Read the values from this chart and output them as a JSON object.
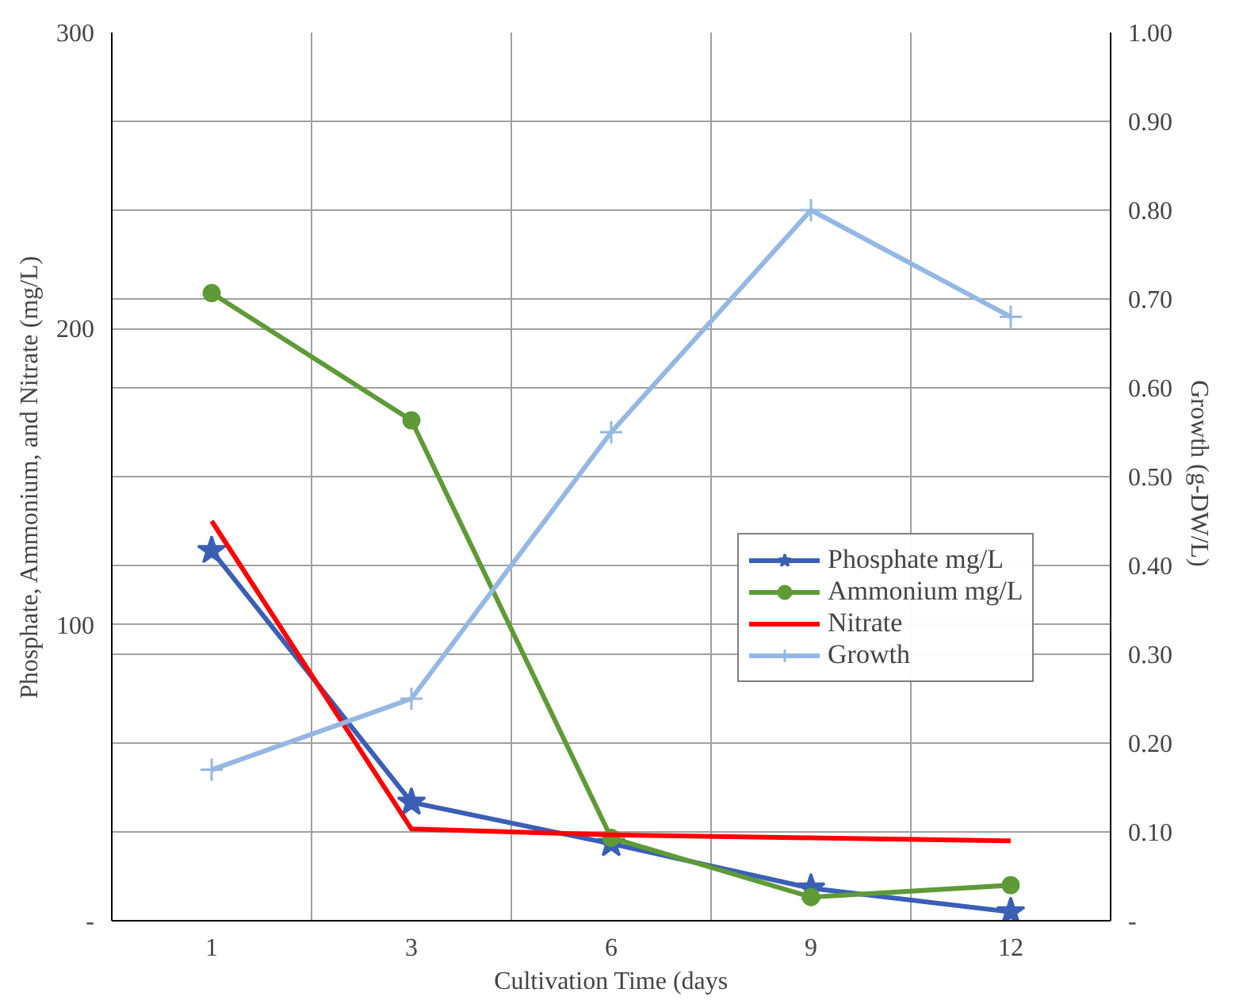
{
  "chart_data": {
    "type": "line",
    "xlabel": "Cultivation Time (days",
    "ylabel": "Phosphate, Ammonium, and Nitrate (mg/L)",
    "y2label": "Growth  (g-DW/L)",
    "categories": [
      "1",
      "3",
      "6",
      "9",
      "12"
    ],
    "ylim": [
      0,
      300
    ],
    "yticks": [
      {
        "value": 0,
        "label": "-"
      },
      100,
      200,
      300
    ],
    "y2lim": [
      0,
      1
    ],
    "y2ticks": [
      {
        "value": 0,
        "label": "-"
      },
      {
        "value": 0.1,
        "label": "0.10"
      },
      {
        "value": 0.2,
        "label": "0.20"
      },
      {
        "value": 0.3,
        "label": "0.30"
      },
      {
        "value": 0.4,
        "label": "0.40"
      },
      {
        "value": 0.5,
        "label": "0.50"
      },
      {
        "value": 0.6,
        "label": "0.60"
      },
      {
        "value": 0.7,
        "label": "0.70"
      },
      {
        "value": 0.8,
        "label": "0.80"
      },
      {
        "value": 0.9,
        "label": "0.90"
      },
      {
        "value": 1,
        "label": "1.00"
      }
    ],
    "grid": true,
    "legend": "right",
    "series": [
      {
        "name": "Phosphate mg/L",
        "color": "#3a5fb5",
        "marker": "star",
        "values": [
          125,
          40,
          26,
          11,
          3
        ]
      },
      {
        "name": "Ammonium mg/L",
        "color": "#5f9a37",
        "marker": "circle",
        "values": [
          212,
          169,
          28,
          8,
          12
        ]
      },
      {
        "name": "Nitrate",
        "color": "#ff0000",
        "marker": "none",
        "values": [
          135,
          31,
          29,
          28,
          27
        ]
      },
      {
        "name": "Growth",
        "color": "#95b8e3",
        "marker": "cross",
        "axis": "y2",
        "values": [
          0.17,
          0.25,
          0.55,
          0.8,
          0.68
        ]
      }
    ]
  }
}
